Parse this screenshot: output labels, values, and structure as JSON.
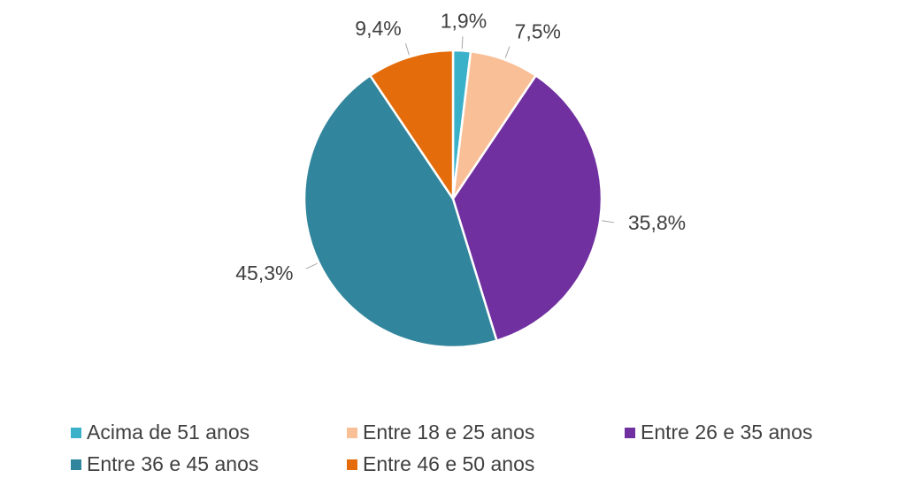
{
  "chart_data": {
    "type": "pie",
    "categories": [
      "Acima de 51 anos",
      "Entre 18 e 25 anos",
      "Entre 26 e 35 anos",
      "Entre 36 e 45 anos",
      "Entre 46 e 50 anos"
    ],
    "values": [
      1.9,
      7.5,
      35.8,
      45.3,
      9.4
    ],
    "value_labels": [
      "1,9%",
      "7,5%",
      "35,8%",
      "45,3%",
      "9,4%"
    ],
    "colors": [
      "#3bb0c9",
      "#f9bf97",
      "#7030a0",
      "#31859c",
      "#e46c0a"
    ],
    "legend": "bottom"
  }
}
